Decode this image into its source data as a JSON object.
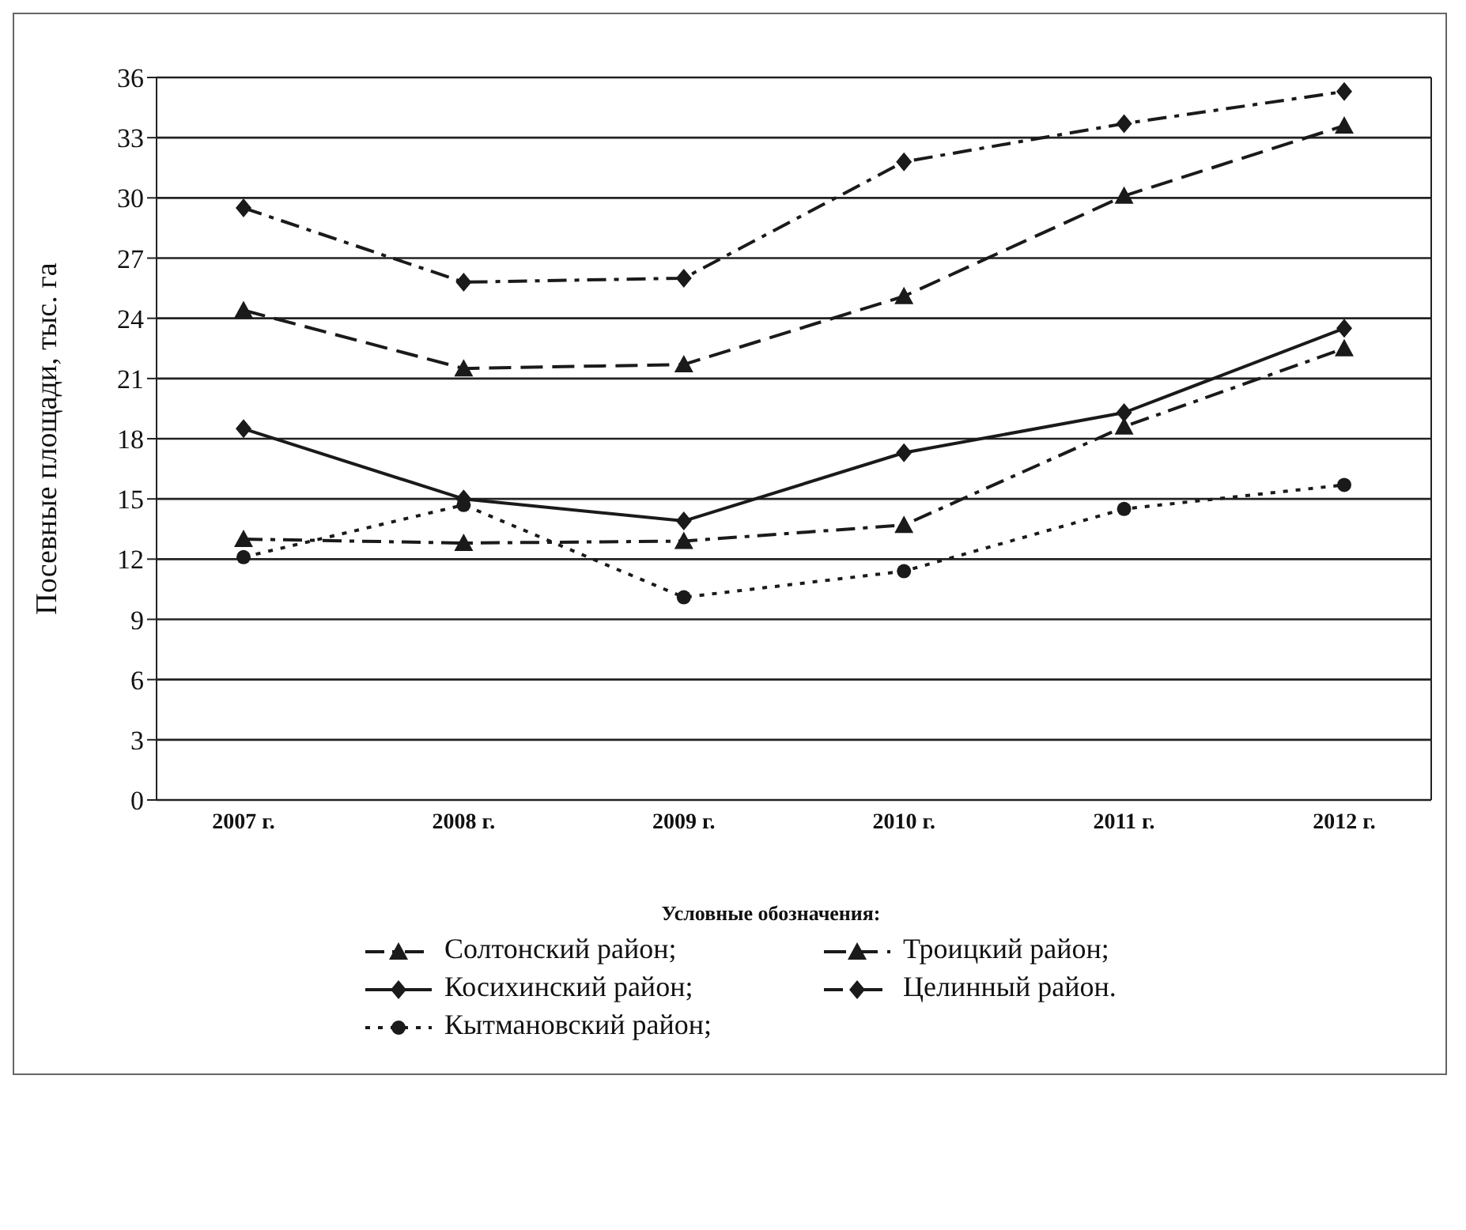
{
  "chart_data": {
    "type": "line",
    "ylabel": "Посевные площади, тыс. га",
    "legend_title": "Условные обозначения:",
    "categories": [
      "2007 г.",
      "2008 г.",
      "2009 г.",
      "2010 г.",
      "2011 г.",
      "2012 г."
    ],
    "series": [
      {
        "name": "Солтонский район;",
        "color": "#1a1a1a",
        "marker": "triangle",
        "line_style": "dashdot",
        "values": [
          13.0,
          12.8,
          12.9,
          13.7,
          18.6,
          22.5
        ]
      },
      {
        "name": "Троицкий район;",
        "color": "#1a1a1a",
        "marker": "triangle",
        "line_style": "dashed",
        "values": [
          24.4,
          21.5,
          21.7,
          25.1,
          30.1,
          33.6
        ]
      },
      {
        "name": "Косихинский район;",
        "color": "#1a1a1a",
        "marker": "diamond",
        "line_style": "solid",
        "values": [
          18.5,
          15.0,
          13.9,
          17.3,
          19.3,
          23.5
        ]
      },
      {
        "name": "Целинный район.",
        "color": "#1a1a1a",
        "marker": "diamond",
        "line_style": "dashdot",
        "values": [
          29.5,
          25.8,
          26.0,
          31.8,
          33.7,
          35.3
        ]
      },
      {
        "name": "Кытмановский район;",
        "color": "#1a1a1a",
        "marker": "circle",
        "line_style": "dotted",
        "values": [
          12.1,
          14.7,
          10.1,
          11.4,
          14.5,
          15.7
        ]
      }
    ],
    "ylim": [
      0,
      36
    ],
    "yticks": [
      0,
      3,
      6,
      9,
      12,
      15,
      18,
      21,
      24,
      27,
      30,
      33,
      36
    ],
    "grid": "y",
    "legend": "bottom"
  }
}
